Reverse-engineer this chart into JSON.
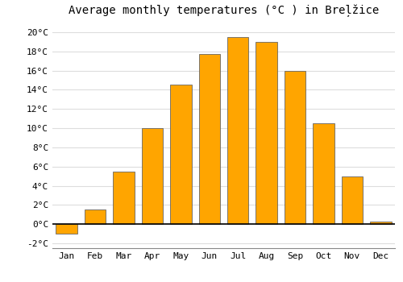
{
  "title": "Average monthly temperatures (°C ) in Breļžice",
  "months": [
    "Jan",
    "Feb",
    "Mar",
    "Apr",
    "May",
    "Jun",
    "Jul",
    "Aug",
    "Sep",
    "Oct",
    "Nov",
    "Dec"
  ],
  "values": [
    -1.0,
    1.5,
    5.5,
    10.0,
    14.5,
    17.7,
    19.5,
    19.0,
    16.0,
    10.5,
    5.0,
    0.3
  ],
  "bar_color": "#FFA500",
  "bar_edge_color": "#666666",
  "ylim": [
    -2.5,
    21.0
  ],
  "yticks": [
    -2,
    0,
    2,
    4,
    6,
    8,
    10,
    12,
    14,
    16,
    18,
    20
  ],
  "ytick_labels": [
    "-2°C",
    "0°C",
    "2°C",
    "4°C",
    "6°C",
    "8°C",
    "10°C",
    "12°C",
    "14°C",
    "16°C",
    "18°C",
    "20°C"
  ],
  "background_color": "#ffffff",
  "grid_color": "#dddddd",
  "title_fontsize": 10,
  "tick_fontsize": 8,
  "font_family": "monospace",
  "bar_width": 0.75
}
